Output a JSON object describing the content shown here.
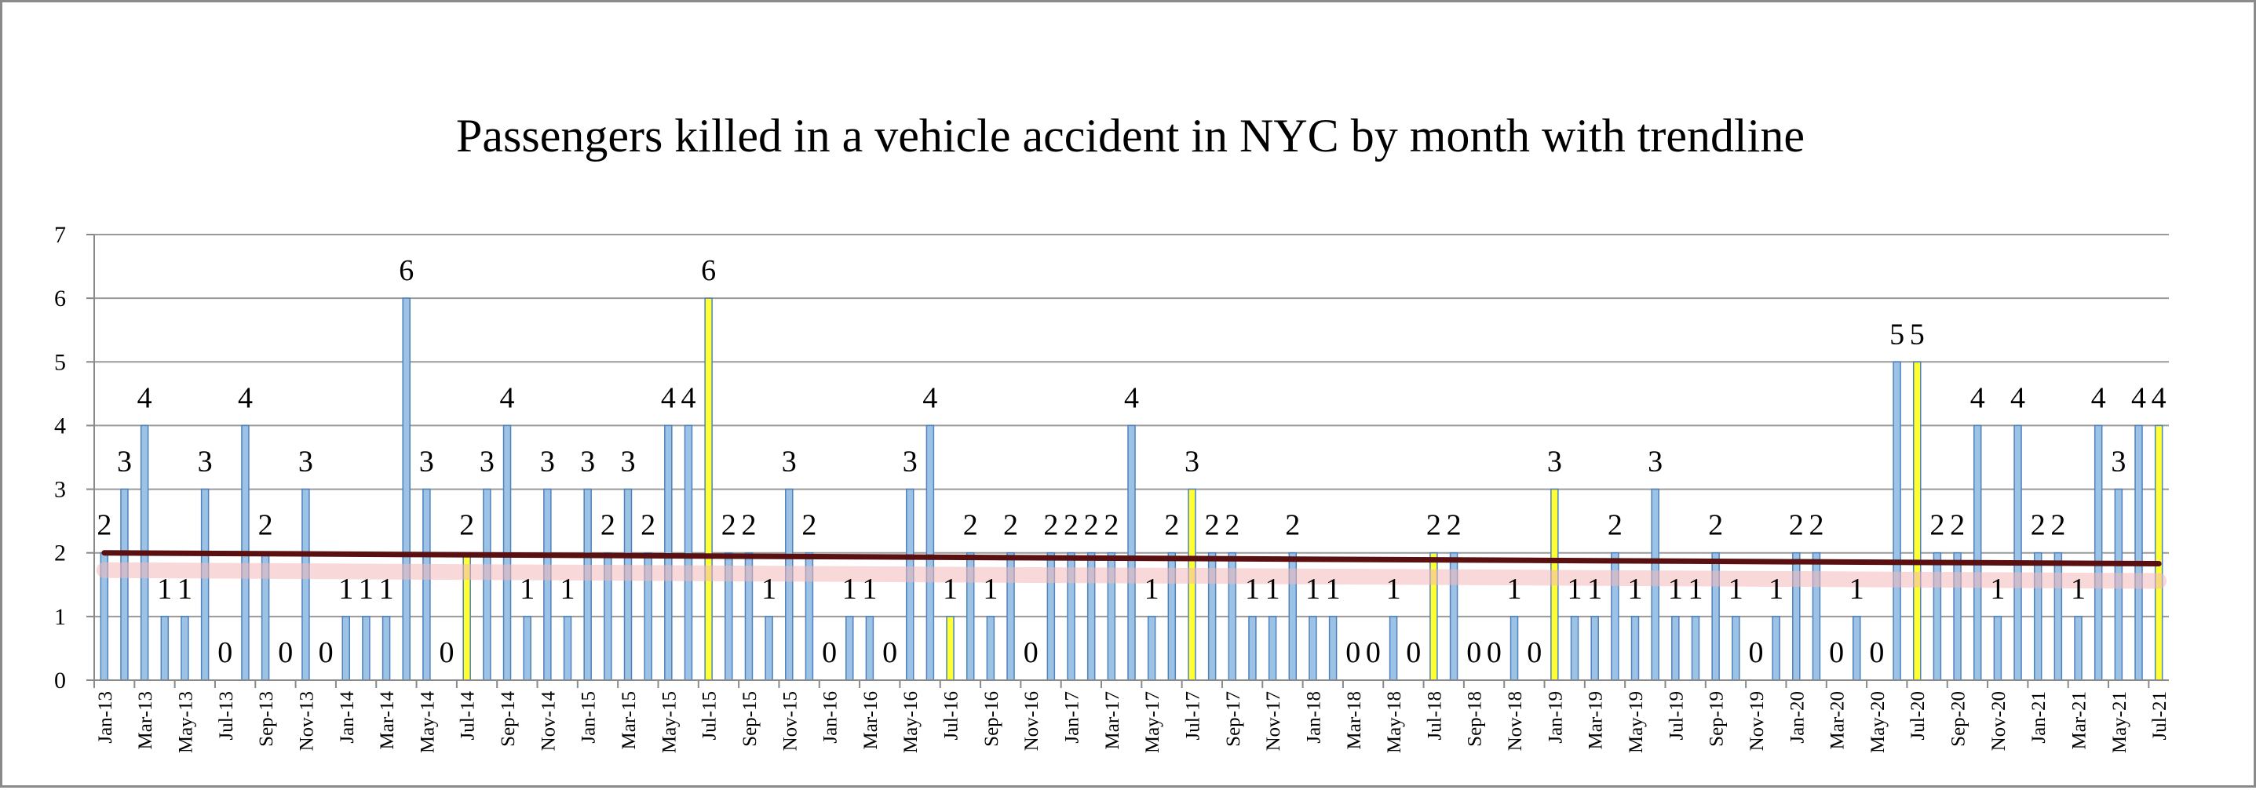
{
  "chart_data": {
    "type": "bar",
    "title": "Passengers killed in a vehicle accident in NYC by month with trendline",
    "xlabel": "",
    "ylabel": "",
    "ylim": [
      0,
      7
    ],
    "yticks": [
      0,
      1,
      2,
      3,
      4,
      5,
      6,
      7
    ],
    "grid": true,
    "legend": "none",
    "categories": [
      "Jan-13",
      "Feb-13",
      "Mar-13",
      "Apr-13",
      "May-13",
      "Jun-13",
      "Jul-13",
      "Aug-13",
      "Sep-13",
      "Oct-13",
      "Nov-13",
      "Dec-13",
      "Jan-14",
      "Feb-14",
      "Mar-14",
      "Apr-14",
      "May-14",
      "Jun-14",
      "Jul-14",
      "Aug-14",
      "Sep-14",
      "Oct-14",
      "Nov-14",
      "Dec-14",
      "Jan-15",
      "Feb-15",
      "Mar-15",
      "Apr-15",
      "May-15",
      "Jun-15",
      "Jul-15",
      "Aug-15",
      "Sep-15",
      "Oct-15",
      "Nov-15",
      "Dec-15",
      "Jan-16",
      "Feb-16",
      "Mar-16",
      "Apr-16",
      "May-16",
      "Jun-16",
      "Jul-16",
      "Aug-16",
      "Sep-16",
      "Oct-16",
      "Nov-16",
      "Dec-16",
      "Jan-17",
      "Feb-17",
      "Mar-17",
      "Apr-17",
      "May-17",
      "Jun-17",
      "Jul-17",
      "Aug-17",
      "Sep-17",
      "Oct-17",
      "Nov-17",
      "Dec-17",
      "Jan-18",
      "Feb-18",
      "Mar-18",
      "Apr-18",
      "May-18",
      "Jun-18",
      "Jul-18",
      "Aug-18",
      "Sep-18",
      "Oct-18",
      "Nov-18",
      "Dec-18",
      "Jan-19",
      "Feb-19",
      "Mar-19",
      "Apr-19",
      "May-19",
      "Jun-19",
      "Jul-19",
      "Aug-19",
      "Sep-19",
      "Oct-19",
      "Nov-19",
      "Dec-19",
      "Jan-20",
      "Feb-20",
      "Mar-20",
      "Apr-20",
      "May-20",
      "Jun-20",
      "Jul-20",
      "Aug-20",
      "Sep-20",
      "Oct-20",
      "Nov-20",
      "Dec-20",
      "Jan-21",
      "Feb-21",
      "Mar-21",
      "Apr-21",
      "May-21",
      "Jun-21",
      "Jul-21"
    ],
    "values": [
      2,
      3,
      4,
      1,
      1,
      3,
      0,
      4,
      2,
      0,
      3,
      0,
      1,
      1,
      1,
      6,
      3,
      0,
      2,
      3,
      4,
      1,
      3,
      1,
      3,
      2,
      3,
      2,
      4,
      4,
      6,
      2,
      2,
      1,
      3,
      2,
      0,
      1,
      1,
      0,
      3,
      4,
      1,
      2,
      1,
      2,
      0,
      2,
      2,
      2,
      2,
      4,
      1,
      2,
      3,
      2,
      2,
      1,
      1,
      2,
      1,
      1,
      0,
      0,
      1,
      0,
      2,
      2,
      0,
      0,
      1,
      0,
      3,
      1,
      1,
      2,
      1,
      3,
      1,
      1,
      2,
      1,
      0,
      1,
      2,
      2,
      0,
      1,
      0,
      5,
      5,
      2,
      2,
      4,
      1,
      4,
      2,
      2,
      1,
      4,
      3,
      4,
      4
    ],
    "highlighted": [
      "Jul-14",
      "Jul-15",
      "Jul-16",
      "Jul-17",
      "Jul-18",
      "Jan-19",
      "Jul-20",
      "Jul-21"
    ],
    "x_tick_labels": [
      "Jan-13",
      "Mar-13",
      "May-13",
      "Jul-13",
      "Sep-13",
      "Nov-13",
      "Jan-14",
      "Mar-14",
      "May-14",
      "Jul-14",
      "Sep-14",
      "Nov-14",
      "Jan-15",
      "Mar-15",
      "May-15",
      "Jul-15",
      "Sep-15",
      "Nov-15",
      "Jan-16",
      "Mar-16",
      "May-16",
      "Jul-16",
      "Sep-16",
      "Nov-16",
      "Jan-17",
      "Mar-17",
      "May-17",
      "Jul-17",
      "Sep-17",
      "Nov-17",
      "Jan-18",
      "Mar-18",
      "May-18",
      "Jul-18",
      "Sep-18",
      "Nov-18",
      "Jan-19",
      "Mar-19",
      "May-19",
      "Jul-19",
      "Sep-19",
      "Nov-19",
      "Jan-20",
      "Mar-20",
      "May-20",
      "Jul-20",
      "Sep-20",
      "Nov-20",
      "Jan-21",
      "Mar-21",
      "May-21",
      "Jul-21"
    ],
    "trendline": {
      "start": 2.0,
      "end": 1.83
    },
    "colors": {
      "bar": "#9cc3e6",
      "bar_edge": "#4f81bd",
      "highlight": "#ffff33",
      "trendline": "#5a1010",
      "trend_glow": "#f2b8b8",
      "grid": "#9a9a9a"
    }
  }
}
